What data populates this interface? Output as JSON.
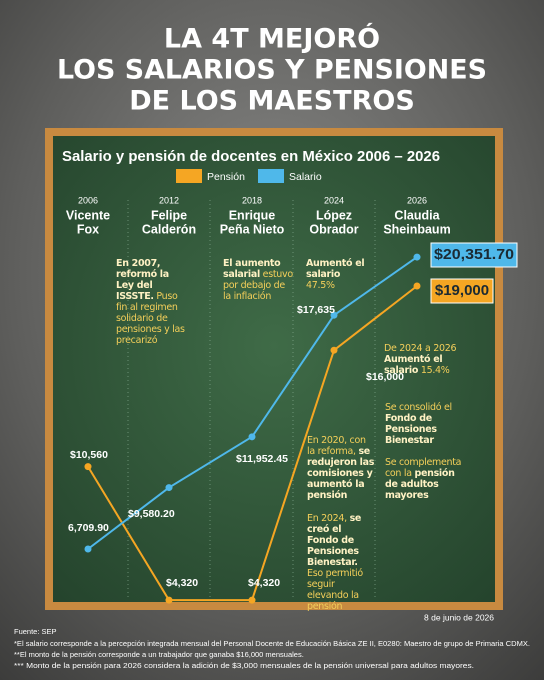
{
  "header": {
    "title_lines": [
      "LA 4T MEJORÓ",
      "LOS SALARIOS Y PENSIONES",
      "DE LOS MAESTROS"
    ]
  },
  "chart_data": {
    "type": "line",
    "title": "Salario y pensión de docentes en México 2006 – 2026",
    "categories": [
      "2006",
      "2012",
      "2018",
      "2024",
      "2026"
    ],
    "presidents": [
      [
        "Vicente",
        "Fox"
      ],
      [
        "Felipe",
        "Calderón"
      ],
      [
        "Enrique",
        "Peña Nieto"
      ],
      [
        "López",
        "Obrador"
      ],
      [
        "Claudia",
        "Sheinbaum"
      ]
    ],
    "series": [
      {
        "name": "Pensión",
        "color": "#f5a623",
        "values": [
          10560,
          4320,
          4320,
          16000,
          19000
        ],
        "value_labels": [
          "$10,560",
          "$4,320",
          "$4,320",
          "$16,000",
          "$19,000"
        ]
      },
      {
        "name": "Salario",
        "color": "#4fb8ea",
        "values": [
          6709.9,
          9580.2,
          11952.45,
          17635,
          20351.7
        ],
        "value_labels": [
          "6,709.90",
          "$9,580.20",
          "$11,952.45",
          "$17,635",
          "$20,351.70"
        ]
      }
    ],
    "annotations": [
      [
        {
          "text": "En 2007, reformó la Ley del ISSSTE.",
          "bold": true
        },
        {
          "text": " Puso fin al regimen solidario de pensiones y las precarizó",
          "bold": false
        }
      ],
      [
        {
          "text": "El aumento salarial",
          "bold": true
        },
        {
          "text": " estuvo por debajo de la inflación",
          "bold": false
        }
      ],
      [
        {
          "text": "Aumentó el salario",
          "bold": true
        },
        {
          "text": " 47.5%",
          "bold": false
        }
      ],
      [
        {
          "text": "De 2024 a 2026",
          "bold": false
        },
        {
          "text": " Aumentó el salario",
          "bold": true
        },
        {
          "text": " 15.4%",
          "bold": false
        }
      ],
      [
        {
          "text": "Se consolidó el ",
          "bold": false
        },
        {
          "text": "Fondo de Pensiones Bienestar",
          "bold": true
        }
      ],
      [
        {
          "text": "Se complementa con la ",
          "bold": false
        },
        {
          "text": "pensión de adultos mayores",
          "bold": true
        }
      ],
      [
        {
          "text": "En 2020, con la reforma, ",
          "bold": false
        },
        {
          "text": "se redujeron las comisiones y aumentó la pensión",
          "bold": true
        }
      ],
      [
        {
          "text": "En 2024, ",
          "bold": false
        },
        {
          "text": "se creó el Fondo de Pensiones Bienestar.",
          "bold": true
        },
        {
          "text": " Eso permitió seguir elevando la pensión",
          "bold": false
        }
      ]
    ]
  },
  "footer": {
    "date": "8 de junio de 2026",
    "source": "Fuente: SEP",
    "notes": [
      "*El salario corresponde a la percepción integrada mensual del Personal Docente de Educación Básica ZE II, E0280: Maestro de grupo de Primaria CDMX.",
      "**El monto de la pensión corresponde a un trabajador que ganaba $16,000 mensuales.",
      "*** Monto de la pensión para 2026 considera la adición de $3,000 mensuales de la pensión universal para adultos mayores."
    ]
  }
}
